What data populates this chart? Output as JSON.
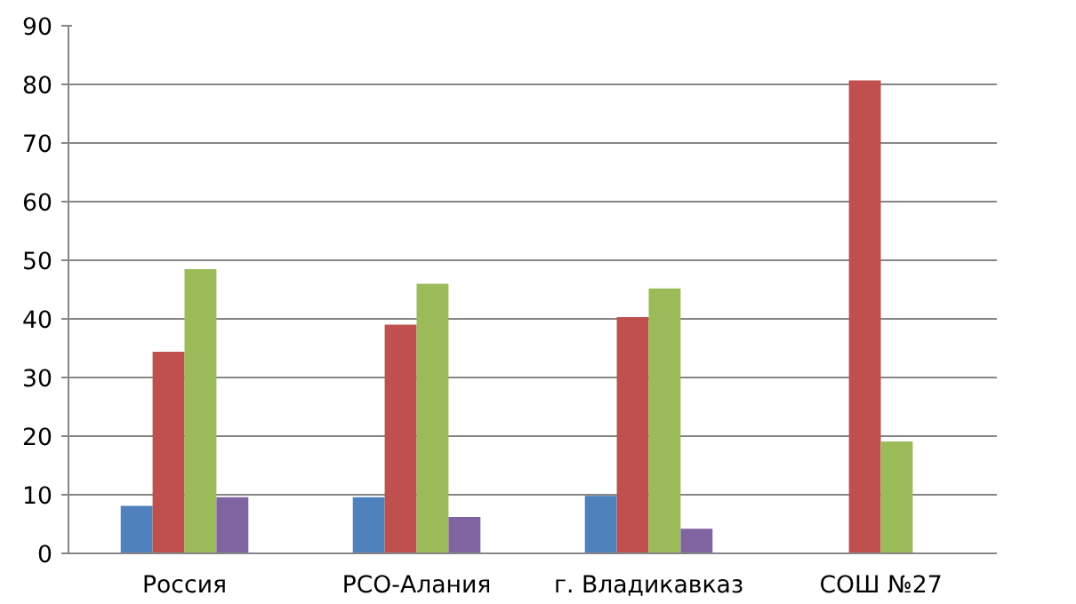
{
  "chart_data": {
    "type": "bar",
    "categories": [
      "Россия",
      "РСО-Алания",
      "г. Владикавказ",
      "СОШ №27"
    ],
    "series": [
      {
        "color": "#4f81bd",
        "values": [
          8.1,
          9.6,
          9.8,
          null
        ]
      },
      {
        "color": "#c0504d",
        "values": [
          34.4,
          39.0,
          40.3,
          80.7
        ]
      },
      {
        "color": "#9bbb59",
        "values": [
          48.5,
          46.0,
          45.2,
          19.1
        ]
      },
      {
        "color": "#8064a2",
        "values": [
          9.6,
          6.2,
          4.2,
          null
        ]
      }
    ],
    "ylim": [
      0,
      90
    ],
    "yticks": [
      0,
      10,
      20,
      30,
      40,
      50,
      60,
      70,
      80,
      90
    ],
    "grid": "y"
  }
}
